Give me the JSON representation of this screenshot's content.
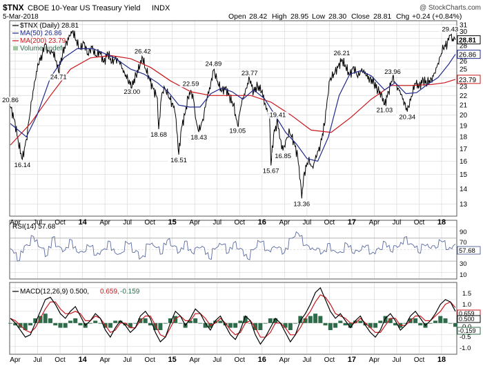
{
  "header": {
    "symbol": "$TNX",
    "name": "CBOE 10-Year US Treasury Yield",
    "exchange": "INDX",
    "watermark": "@ StockCharts.com",
    "date": "5-Mar-2018",
    "quote": {
      "open_label": "Open",
      "open": "28.42",
      "high_label": "High",
      "high": "28.95",
      "low_label": "Low",
      "low": "28.30",
      "close_label": "Close",
      "close": "28.81",
      "chg_label": "Chg",
      "chg": "+0.24 (+0.84%)"
    }
  },
  "colors": {
    "price": "#000000",
    "ma50": "#1f2a8a",
    "ma200": "#c8151b",
    "rsi": "#5a6aa0",
    "macd": "#000000",
    "signal": "#c8151b",
    "hist": "#2e6b4a",
    "grid": "#d8d8d8",
    "panel_bg": "#ffffff"
  },
  "legend": {
    "price": "$TNX (Daily) 28.81",
    "ma50": "MA(50) 26.86",
    "ma200": "MA(200) 23.79",
    "volume": "Volume undef"
  },
  "rsi_panel": {
    "label": "RSI(14) 57.68",
    "ticks": [
      "90",
      "70",
      "50",
      "30",
      "10"
    ],
    "last": "57.68"
  },
  "macd_panel": {
    "label_a": "MACD(12,26,9) 0.500,",
    "label_b": "0.659,",
    "label_c": "-0.159",
    "ticks": [
      "1.5",
      "1.0",
      "0.5",
      "0.0",
      "-0.5",
      "-1.0"
    ],
    "last_signal": "0.659",
    "last_macd": "0.500",
    "last_hist": "-0.159"
  },
  "chart_data": {
    "type": "line",
    "x_ticks": [
      "Apr",
      "Jul",
      "Oct",
      "14",
      "Apr",
      "Jul",
      "Oct",
      "15",
      "Apr",
      "Jul",
      "Oct",
      "16",
      "Apr",
      "Jul",
      "Oct",
      "17",
      "Apr",
      "Jul",
      "Oct",
      "18"
    ],
    "y_ticks": [
      13,
      14,
      15,
      16,
      17,
      18,
      19,
      20,
      21,
      22,
      23,
      24,
      25,
      26,
      27,
      28,
      29,
      30,
      31
    ],
    "ylim": [
      12.3,
      31.5
    ],
    "scale": "log",
    "price": [
      [
        0,
        20.86
      ],
      [
        3,
        19.6
      ],
      [
        6,
        17.5
      ],
      [
        9,
        16.14
      ],
      [
        12,
        17.8
      ],
      [
        15,
        20.4
      ],
      [
        18,
        23.5
      ],
      [
        21,
        25.5
      ],
      [
        24,
        27.0
      ],
      [
        26,
        28.2
      ],
      [
        28,
        27.4
      ],
      [
        30,
        26.9
      ],
      [
        32,
        27.2
      ],
      [
        34,
        26.0
      ],
      [
        36,
        24.71
      ],
      [
        39,
        26.8
      ],
      [
        42,
        28.6
      ],
      [
        45,
        29.4
      ],
      [
        47,
        30.1
      ],
      [
        49,
        28.7
      ],
      [
        52,
        27.6
      ],
      [
        55,
        28.4
      ],
      [
        58,
        26.9
      ],
      [
        61,
        27.8
      ],
      [
        64,
        26.7
      ],
      [
        67,
        27.1
      ],
      [
        70,
        25.9
      ],
      [
        73,
        27.0
      ],
      [
        76,
        25.8
      ],
      [
        79,
        26.5
      ],
      [
        82,
        25.6
      ],
      [
        85,
        24.8
      ],
      [
        88,
        23.6
      ],
      [
        91,
        23.0
      ],
      [
        94,
        24.3
      ],
      [
        97,
        25.4
      ],
      [
        99,
        26.42
      ],
      [
        101,
        25.1
      ],
      [
        104,
        23.9
      ],
      [
        107,
        22.7
      ],
      [
        110,
        21.7
      ],
      [
        111,
        18.68
      ],
      [
        113,
        21.8
      ],
      [
        115,
        23.0
      ],
      [
        118,
        22.0
      ],
      [
        121,
        21.2
      ],
      [
        123,
        20.4
      ],
      [
        124,
        19.6
      ],
      [
        126,
        16.51
      ],
      [
        128,
        18.8
      ],
      [
        131,
        20.3
      ],
      [
        133,
        21.8
      ],
      [
        135,
        22.59
      ],
      [
        137,
        21.6
      ],
      [
        139,
        19.5
      ],
      [
        141,
        18.43
      ],
      [
        144,
        19.6
      ],
      [
        147,
        21.5
      ],
      [
        150,
        23.4
      ],
      [
        152,
        24.89
      ],
      [
        155,
        23.6
      ],
      [
        158,
        22.4
      ],
      [
        161,
        22.9
      ],
      [
        164,
        21.8
      ],
      [
        167,
        21.0
      ],
      [
        170,
        19.05
      ],
      [
        173,
        21.1
      ],
      [
        176,
        22.7
      ],
      [
        179,
        23.77
      ],
      [
        182,
        22.4
      ],
      [
        185,
        23.1
      ],
      [
        188,
        22.4
      ],
      [
        191,
        21.0
      ],
      [
        194,
        19.6
      ],
      [
        195,
        15.67
      ],
      [
        197,
        18.2
      ],
      [
        200,
        19.41
      ],
      [
        202,
        17.8
      ],
      [
        204,
        16.85
      ],
      [
        206,
        17.7
      ],
      [
        209,
        18.4
      ],
      [
        212,
        17.6
      ],
      [
        215,
        16.4
      ],
      [
        217,
        14.6
      ],
      [
        218,
        13.36
      ],
      [
        220,
        15.2
      ],
      [
        223,
        16.0
      ],
      [
        226,
        15.6
      ],
      [
        229,
        16.3
      ],
      [
        232,
        17.4
      ],
      [
        235,
        19.0
      ],
      [
        237,
        21.5
      ],
      [
        239,
        23.7
      ],
      [
        242,
        24.4
      ],
      [
        245,
        25.2
      ],
      [
        248,
        26.21
      ],
      [
        251,
        25.2
      ],
      [
        254,
        24.3
      ],
      [
        257,
        25.3
      ],
      [
        260,
        24.0
      ],
      [
        263,
        25.1
      ],
      [
        266,
        24.2
      ],
      [
        269,
        23.9
      ],
      [
        272,
        23.4
      ],
      [
        275,
        22.5
      ],
      [
        278,
        22.1
      ],
      [
        280,
        21.03
      ],
      [
        283,
        22.4
      ],
      [
        286,
        23.96
      ],
      [
        289,
        23.2
      ],
      [
        292,
        22.1
      ],
      [
        295,
        21.3
      ],
      [
        297,
        20.34
      ],
      [
        300,
        21.9
      ],
      [
        303,
        23.3
      ],
      [
        306,
        23.1
      ],
      [
        309,
        23.7
      ],
      [
        312,
        23.3
      ],
      [
        315,
        23.9
      ],
      [
        318,
        24.5
      ],
      [
        321,
        26.4
      ],
      [
        324,
        27.6
      ],
      [
        327,
        28.4
      ],
      [
        329,
        29.43
      ],
      [
        331,
        28.9
      ],
      [
        333,
        28.81
      ]
    ],
    "ma50": [
      [
        0,
        19.2
      ],
      [
        12,
        18.0
      ],
      [
        20,
        20.0
      ],
      [
        30,
        24.0
      ],
      [
        40,
        26.4
      ],
      [
        50,
        27.6
      ],
      [
        62,
        27.6
      ],
      [
        78,
        26.4
      ],
      [
        90,
        25.0
      ],
      [
        100,
        24.4
      ],
      [
        110,
        23.4
      ],
      [
        118,
        22.4
      ],
      [
        126,
        21.0
      ],
      [
        134,
        20.8
      ],
      [
        142,
        20.8
      ],
      [
        150,
        22.2
      ],
      [
        158,
        22.8
      ],
      [
        166,
        22.4
      ],
      [
        174,
        21.6
      ],
      [
        182,
        22.6
      ],
      [
        190,
        21.7
      ],
      [
        198,
        20.0
      ],
      [
        206,
        18.4
      ],
      [
        214,
        17.4
      ],
      [
        222,
        16.2
      ],
      [
        230,
        16.0
      ],
      [
        238,
        18.0
      ],
      [
        246,
        22.0
      ],
      [
        254,
        24.4
      ],
      [
        262,
        24.8
      ],
      [
        270,
        24.2
      ],
      [
        280,
        22.6
      ],
      [
        288,
        23.4
      ],
      [
        296,
        22.2
      ],
      [
        304,
        22.3
      ],
      [
        312,
        23.2
      ],
      [
        320,
        24.0
      ],
      [
        328,
        25.6
      ],
      [
        333,
        26.86
      ]
    ],
    "ma200": [
      [
        0,
        17.3
      ],
      [
        15,
        19.2
      ],
      [
        30,
        22.0
      ],
      [
        45,
        25.0
      ],
      [
        60,
        26.4
      ],
      [
        75,
        26.7
      ],
      [
        90,
        26.3
      ],
      [
        105,
        25.2
      ],
      [
        120,
        23.6
      ],
      [
        135,
        22.4
      ],
      [
        150,
        22.0
      ],
      [
        165,
        22.0
      ],
      [
        180,
        22.0
      ],
      [
        195,
        21.3
      ],
      [
        210,
        20.0
      ],
      [
        225,
        18.6
      ],
      [
        240,
        18.4
      ],
      [
        255,
        19.8
      ],
      [
        270,
        21.6
      ],
      [
        285,
        23.1
      ],
      [
        300,
        23.1
      ],
      [
        315,
        23.2
      ],
      [
        325,
        23.4
      ],
      [
        333,
        23.79
      ]
    ],
    "annotations": [
      {
        "i": 0,
        "v": 20.86,
        "label": "20.86",
        "pos": "above"
      },
      {
        "i": 9,
        "v": 16.14,
        "label": "16.14",
        "pos": "below"
      },
      {
        "i": 36,
        "v": 24.71,
        "label": "24.71",
        "pos": "below"
      },
      {
        "i": 99,
        "v": 26.42,
        "label": "26.42",
        "pos": "above"
      },
      {
        "i": 91,
        "v": 23.0,
        "label": "23.00",
        "pos": "below"
      },
      {
        "i": 111,
        "v": 18.68,
        "label": "18.68",
        "pos": "below"
      },
      {
        "i": 126,
        "v": 16.51,
        "label": "16.51",
        "pos": "below"
      },
      {
        "i": 135,
        "v": 22.59,
        "label": "22.59",
        "pos": "above"
      },
      {
        "i": 141,
        "v": 18.43,
        "label": "18.43",
        "pos": "below"
      },
      {
        "i": 152,
        "v": 24.89,
        "label": "24.89",
        "pos": "above"
      },
      {
        "i": 170,
        "v": 19.05,
        "label": "19.05",
        "pos": "below"
      },
      {
        "i": 179,
        "v": 23.77,
        "label": "23.77",
        "pos": "above"
      },
      {
        "i": 200,
        "v": 19.41,
        "label": "19.41",
        "pos": "above"
      },
      {
        "i": 204,
        "v": 16.85,
        "label": "16.85",
        "pos": "below"
      },
      {
        "i": 195,
        "v": 15.67,
        "label": "15.67",
        "pos": "below"
      },
      {
        "i": 218,
        "v": 13.36,
        "label": "13.36",
        "pos": "below"
      },
      {
        "i": 248,
        "v": 26.21,
        "label": "26.21",
        "pos": "above"
      },
      {
        "i": 286,
        "v": 23.96,
        "label": "23.96",
        "pos": "above"
      },
      {
        "i": 280,
        "v": 21.03,
        "label": "21.03",
        "pos": "below"
      },
      {
        "i": 297,
        "v": 20.34,
        "label": "20.34",
        "pos": "below"
      },
      {
        "i": 329,
        "v": 29.43,
        "label": "29.43",
        "pos": "above"
      }
    ],
    "right_labels": [
      {
        "v": 28.81,
        "label": "28.81",
        "style": "close"
      },
      {
        "v": 26.86,
        "label": "26.86",
        "style": "ma50"
      },
      {
        "v": 23.79,
        "label": "23.79",
        "style": "ma200"
      }
    ],
    "rsi": {
      "ylim": [
        0,
        100
      ],
      "values": [
        52,
        40,
        35,
        45,
        55,
        62,
        70,
        66,
        58,
        48,
        42,
        55,
        68,
        60,
        52,
        46,
        58,
        63,
        55,
        48,
        42,
        50,
        57,
        53,
        45,
        40,
        48,
        55,
        60,
        52,
        45,
        38,
        50,
        62,
        58,
        50,
        44,
        35,
        42,
        55,
        63,
        57,
        50,
        47,
        58,
        66,
        61,
        52,
        46,
        55,
        60,
        53,
        44,
        50,
        58,
        52,
        42,
        38,
        47,
        56,
        62,
        55,
        48,
        52,
        60,
        56,
        48,
        40,
        37,
        45,
        55,
        66,
        60,
        53,
        46,
        52,
        58,
        50,
        44,
        55,
        65,
        75,
        80,
        70,
        62,
        55,
        50,
        54,
        48,
        45,
        50,
        56,
        52,
        46,
        42,
        50,
        58,
        55,
        48,
        44,
        50,
        57,
        53,
        47,
        43,
        49,
        55,
        60,
        56,
        50,
        52,
        58,
        62,
        68,
        64,
        57,
        53,
        49,
        55,
        59,
        56,
        52,
        57,
        66,
        61,
        55,
        50,
        57
      ]
    },
    "macd": {
      "ylim": [
        -1.3,
        1.7
      ],
      "macd": [
        0.2,
        0.0,
        -0.3,
        -0.6,
        -0.5,
        0.0,
        0.5,
        1.0,
        1.1,
        0.8,
        0.4,
        0.2,
        0.5,
        0.7,
        0.3,
        -0.1,
        0.1,
        0.4,
        0.2,
        -0.3,
        -0.6,
        -0.2,
        0.1,
        -0.1,
        -0.4,
        -0.2,
        0.3,
        0.5,
        0.2,
        -0.4,
        -0.8,
        -0.6,
        0.0,
        0.5,
        0.3,
        -0.1,
        0.2,
        0.6,
        0.4,
        0.0,
        -0.3,
        0.1,
        0.3,
        -0.1,
        -0.5,
        -0.7,
        -0.3,
        0.3,
        0.1,
        -0.5,
        -0.9,
        -0.6,
        -0.2,
        0.2,
        0.0,
        -0.4,
        -0.8,
        -0.5,
        0.1,
        0.4,
        0.8,
        1.3,
        1.5,
        1.0,
        0.5,
        0.2,
        0.4,
        0.1,
        -0.2,
        0.1,
        0.3,
        -0.1,
        -0.4,
        -0.6,
        -0.3,
        0.2,
        0.4,
        0.1,
        -0.3,
        -0.1,
        0.3,
        0.5,
        0.2,
        -0.1,
        0.1,
        0.4,
        0.8,
        1.0,
        0.9,
        0.5
      ],
      "signal": [
        0.2,
        0.1,
        -0.1,
        -0.3,
        -0.4,
        -0.2,
        0.2,
        0.6,
        0.9,
        0.9,
        0.6,
        0.4,
        0.4,
        0.5,
        0.4,
        0.1,
        0.1,
        0.3,
        0.2,
        -0.1,
        -0.4,
        -0.3,
        0.0,
        0.0,
        -0.2,
        -0.2,
        0.1,
        0.3,
        0.3,
        -0.1,
        -0.5,
        -0.6,
        -0.2,
        0.2,
        0.3,
        0.1,
        0.1,
        0.4,
        0.4,
        0.2,
        -0.1,
        0.0,
        0.2,
        0.0,
        -0.3,
        -0.5,
        -0.4,
        0.0,
        0.1,
        -0.2,
        -0.6,
        -0.6,
        -0.4,
        0.0,
        0.0,
        -0.2,
        -0.5,
        -0.5,
        -0.2,
        0.2,
        0.5,
        0.9,
        1.2,
        1.1,
        0.8,
        0.4,
        0.3,
        0.2,
        0.0,
        0.0,
        0.2,
        0.0,
        -0.2,
        -0.4,
        -0.4,
        -0.1,
        0.2,
        0.2,
        -0.1,
        -0.1,
        0.1,
        0.3,
        0.3,
        0.1,
        0.1,
        0.3,
        0.5,
        0.8,
        0.9,
        0.66
      ]
    }
  }
}
